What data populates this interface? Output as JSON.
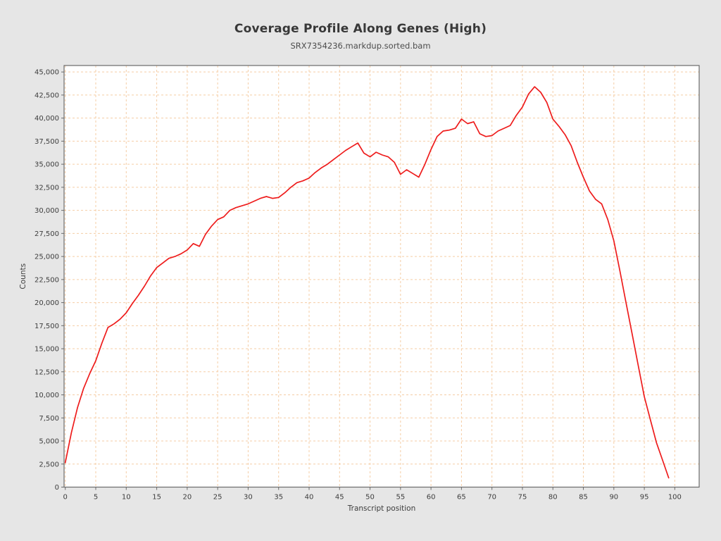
{
  "chart_data": {
    "type": "line",
    "title": "Coverage Profile Along Genes (High)",
    "subtitle": "SRX7354236.markdup.sorted.bam",
    "xlabel": "Transcript position",
    "ylabel": "Counts",
    "legend": null,
    "grid": true,
    "x_ticks": [
      0,
      5,
      10,
      15,
      20,
      25,
      30,
      35,
      40,
      45,
      50,
      55,
      60,
      65,
      70,
      75,
      80,
      85,
      90,
      95,
      100
    ],
    "y_ticks": [
      0,
      2500,
      5000,
      7500,
      10000,
      12500,
      15000,
      17500,
      20000,
      22500,
      25000,
      27500,
      30000,
      32500,
      35000,
      37500,
      40000,
      42500,
      45000
    ],
    "xlim": [
      -0.2,
      104.0
    ],
    "ylim": [
      0,
      45700
    ],
    "x": [
      0,
      1,
      2,
      3,
      4,
      5,
      6,
      7,
      8,
      9,
      10,
      11,
      12,
      13,
      14,
      15,
      16,
      17,
      18,
      19,
      20,
      21,
      22,
      23,
      24,
      25,
      26,
      27,
      28,
      29,
      30,
      31,
      32,
      33,
      34,
      35,
      36,
      37,
      38,
      39,
      40,
      41,
      42,
      43,
      44,
      45,
      46,
      47,
      48,
      49,
      50,
      51,
      52,
      53,
      54,
      55,
      56,
      57,
      58,
      59,
      60,
      61,
      62,
      63,
      64,
      65,
      66,
      67,
      68,
      69,
      70,
      71,
      72,
      73,
      74,
      75,
      76,
      77,
      78,
      79,
      80,
      81,
      82,
      83,
      84,
      85,
      86,
      87,
      88,
      89,
      90,
      91,
      92,
      93,
      94,
      95,
      96,
      97,
      98,
      99
    ],
    "series": [
      {
        "name": "SRX7354236.markdup.sorted.bam",
        "color": "#ee1c1c",
        "values": [
          2650,
          5900,
          8600,
          10700,
          12300,
          13700,
          15600,
          17300,
          17700,
          18200,
          18900,
          19900,
          20800,
          21800,
          22900,
          23800,
          24300,
          24800,
          25000,
          25300,
          25700,
          26400,
          26100,
          27400,
          28300,
          29000,
          29300,
          30000,
          30300,
          30500,
          30700,
          31000,
          31300,
          31500,
          31300,
          31400,
          31900,
          32500,
          33000,
          33200,
          33500,
          34100,
          34600,
          35000,
          35500,
          36000,
          36500,
          36900,
          37300,
          36200,
          35800,
          36300,
          36000,
          35800,
          35200,
          33900,
          34400,
          34000,
          33600,
          35000,
          36600,
          38000,
          38600,
          38700,
          38900,
          39900,
          39400,
          39600,
          38300,
          38000,
          38100,
          38600,
          38900,
          39200,
          40300,
          41200,
          42600,
          43400,
          42800,
          41700,
          39900,
          39100,
          38200,
          37000,
          35200,
          33600,
          32100,
          31200,
          30700,
          29000,
          26700,
          23400,
          20000,
          16600,
          13200,
          9800,
          7300,
          4800,
          2900,
          1000
        ]
      }
    ],
    "colors": {
      "background": "#e6e6e6",
      "plot_background": "#ffffff",
      "grid_color": "#f5cda5",
      "frame_color": "#6b6b6b",
      "tick_label_color": "#3d3d3d",
      "axis_label_color": "#3d3d3d",
      "line_color": "#ee1c1c"
    }
  }
}
